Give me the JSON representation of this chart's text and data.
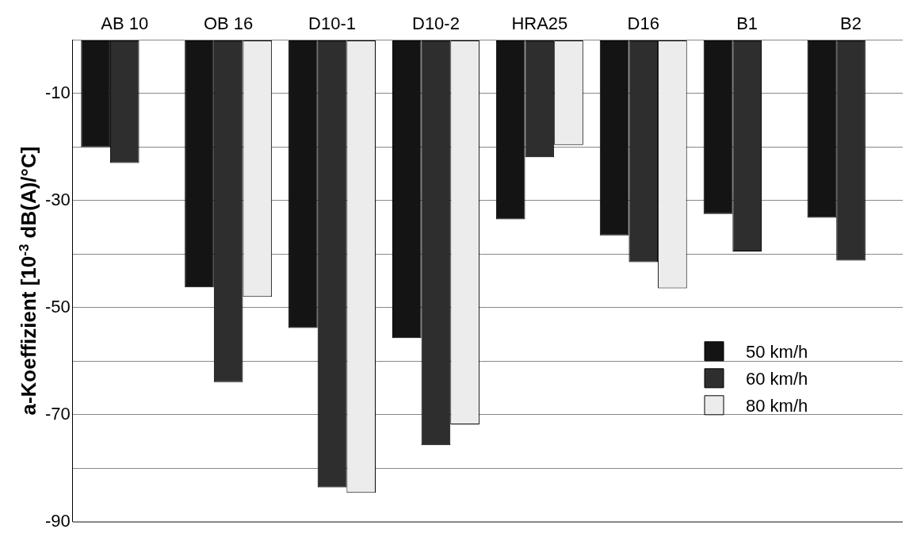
{
  "chart_data": {
    "type": "bar",
    "ylabel": "a-Koeffizient [10$^{-3}$ dB(A)/°C]",
    "categories": [
      "AB 10",
      "OB 16",
      "D10-1",
      "D10-2",
      "HRA25",
      "D16",
      "B1",
      "B2"
    ],
    "series": [
      {
        "name": "50 km/h",
        "color": "#141414",
        "values": [
          -20.0,
          -46.2,
          -53.8,
          -55.7,
          -33.5,
          -36.5,
          -32.5,
          -33.2
        ]
      },
      {
        "name": "60 km/h",
        "color": "#2e2e2e",
        "values": [
          -23.0,
          -63.9,
          -83.6,
          -75.7,
          -21.9,
          -41.5,
          -39.5,
          -41.2
        ]
      },
      {
        "name": "80 km/h",
        "color": "#ececec",
        "values": [
          null,
          -48.0,
          -84.6,
          -71.8,
          -19.6,
          -46.4,
          null,
          null
        ]
      }
    ],
    "ylim": [
      -90,
      0
    ],
    "yticks": [
      {
        "value": 0,
        "label": null
      },
      -10,
      {
        "value": -20,
        "label": null
      },
      -30,
      {
        "value": -40,
        "label": null
      },
      -50,
      {
        "value": -60,
        "label": null
      },
      -70,
      {
        "value": -80,
        "label": null
      },
      -90
    ],
    "grid": "y",
    "legend": "bottom right"
  }
}
